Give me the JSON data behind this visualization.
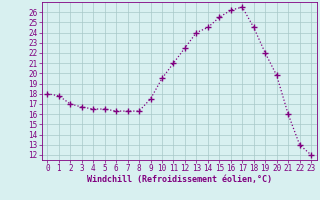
{
  "x": [
    0,
    1,
    2,
    3,
    4,
    5,
    6,
    7,
    8,
    9,
    10,
    11,
    12,
    13,
    14,
    15,
    16,
    17,
    18,
    19,
    20,
    21,
    22,
    23
  ],
  "y": [
    18,
    17.8,
    17,
    16.7,
    16.5,
    16.5,
    16.3,
    16.3,
    16.3,
    17.5,
    19.5,
    21,
    22.5,
    24,
    24.5,
    25.5,
    26.2,
    26.5,
    24.5,
    22,
    19.8,
    16,
    13,
    12
  ],
  "line_color": "#800080",
  "marker": "+",
  "marker_size": 4,
  "marker_lw": 1.0,
  "line_width": 0.9,
  "linestyle": ":",
  "bg_color": "#d8f0f0",
  "grid_color": "#a8c8c8",
  "xlabel": "Windchill (Refroidissement éolien,°C)",
  "xlabel_color": "#800080",
  "tick_color": "#800080",
  "spine_color": "#800080",
  "ylim": [
    11.5,
    27
  ],
  "xlim": [
    -0.5,
    23.5
  ],
  "yticks": [
    12,
    13,
    14,
    15,
    16,
    17,
    18,
    19,
    20,
    21,
    22,
    23,
    24,
    25,
    26
  ],
  "xticks": [
    0,
    1,
    2,
    3,
    4,
    5,
    6,
    7,
    8,
    9,
    10,
    11,
    12,
    13,
    14,
    15,
    16,
    17,
    18,
    19,
    20,
    21,
    22,
    23
  ],
  "tick_fontsize": 5.5,
  "xlabel_fontsize": 6.0
}
